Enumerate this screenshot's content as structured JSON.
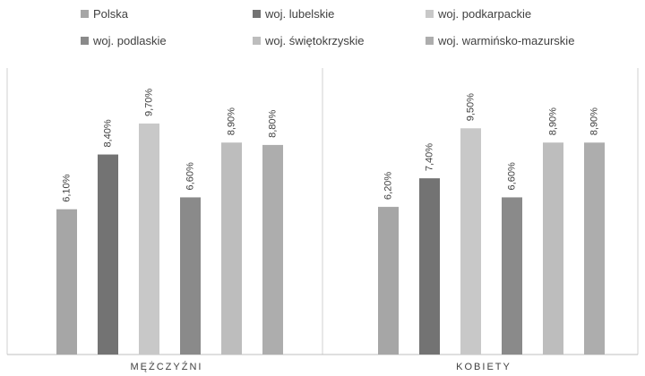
{
  "chart_data": {
    "type": "bar",
    "categories": [
      "MĘŻCZYŹNI",
      "KOBIETY"
    ],
    "series": [
      {
        "name": "Polska",
        "color": "#a6a6a6",
        "values": [
          6.1,
          6.2
        ],
        "labels": [
          "6,10%",
          "6,20%"
        ]
      },
      {
        "name": "woj. lubelskie",
        "color": "#737373",
        "values": [
          8.4,
          7.4
        ],
        "labels": [
          "8,40%",
          "7,40%"
        ]
      },
      {
        "name": "woj. podkarpackie",
        "color": "#c8c8c8",
        "values": [
          9.7,
          9.5
        ],
        "labels": [
          "9,70%",
          "9,50%"
        ]
      },
      {
        "name": "woj. podlaskie",
        "color": "#8a8a8a",
        "values": [
          6.6,
          6.6
        ],
        "labels": [
          "6,60%",
          "6,60%"
        ]
      },
      {
        "name": "woj. świętokrzyskie",
        "color": "#bdbdbd",
        "values": [
          8.9,
          8.9
        ],
        "labels": [
          "8,90%",
          "8,90%"
        ]
      },
      {
        "name": "woj. warmińsko-mazurskie",
        "color": "#adadad",
        "values": [
          8.8,
          8.9
        ],
        "labels": [
          "8,80%",
          "8,90%"
        ]
      }
    ],
    "ylim": [
      0,
      12
    ],
    "grid": false,
    "legend_position": "top"
  }
}
